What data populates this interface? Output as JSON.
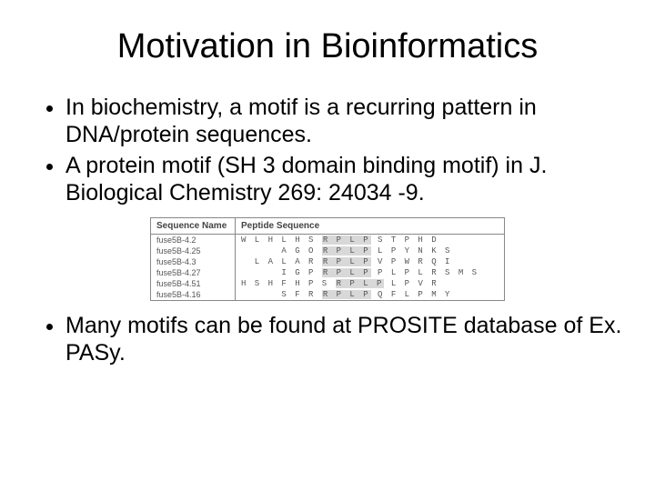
{
  "title": "Motivation in Bioinformatics",
  "bullets": {
    "b1": "In biochemistry, a motif is a recurring pattern in DNA/protein sequences.",
    "b2": "A protein motif (SH 3 domain binding motif) in J. Biological Chemistry 269: 24034 -9.",
    "b3": "Many motifs can be found at PROSITE database of Ex. PASy."
  },
  "table": {
    "headers": {
      "name": "Sequence\nName",
      "pep": "Peptide\nSequence"
    },
    "rows": [
      {
        "name": "fuse5B-4.2",
        "pre": "W L H L H S",
        "motif": "R P L P",
        "post": "S T P H D"
      },
      {
        "name": "fuse5B-4.25",
        "pre": "      A G O",
        "motif": "R P L P",
        "post": "L P Y N K S"
      },
      {
        "name": "fuse5B-4.3",
        "pre": "  L A L A R",
        "motif": "R P L P",
        "post": "V P W R Q I"
      },
      {
        "name": "fuse5B-4.27",
        "pre": "      I G P",
        "motif": "R P L P",
        "post": "P L P L R S M S"
      },
      {
        "name": "fuse5B-4.51",
        "pre": "H S H F H P S",
        "motif": "R P L P",
        "post": "L P V R"
      },
      {
        "name": "fuse5B-4.16",
        "pre": "      S F R",
        "motif": "R P L P",
        "post": "Q F L P M Y"
      }
    ]
  }
}
